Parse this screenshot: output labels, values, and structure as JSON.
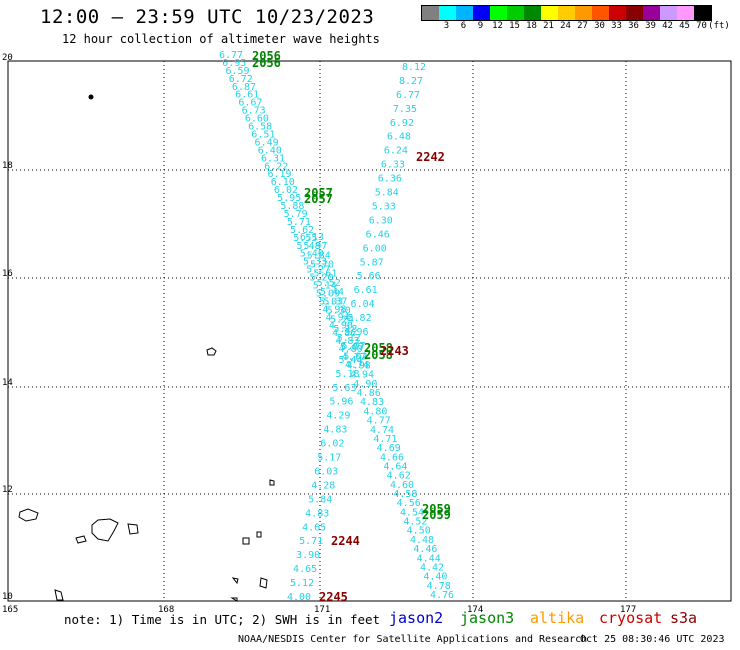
{
  "header": {
    "title": "12:00 – 23:59 UTC 10/23/2023",
    "subtitle": "12 hour collection of altimeter wave heights"
  },
  "legend": {
    "unit": "(ft)",
    "colors": [
      "#808080",
      "#00ffff",
      "#00b4ff",
      "#0000ff",
      "#00ff00",
      "#00cc00",
      "#008800",
      "#ffff00",
      "#ffcc00",
      "#ff9900",
      "#ff5500",
      "#cc0000",
      "#880000",
      "#990099",
      "#cc99ff",
      "#ff99ff",
      "#000000"
    ],
    "labels": [
      "",
      "3",
      "6",
      "9",
      "12",
      "15",
      "18",
      "21",
      "24",
      "27",
      "30",
      "33",
      "36",
      "39",
      "42",
      "45",
      "70"
    ]
  },
  "map": {
    "x_ticks": [
      "165",
      "168",
      "171",
      "174",
      "177"
    ],
    "y_ticks": [
      "20",
      "18",
      "16",
      "14",
      "12",
      "10"
    ],
    "swh_color": "#22d4e8",
    "tracks": {
      "west_top": [
        "6.77",
        "6.95",
        "6.59",
        "6.72",
        "6.87",
        "6.61",
        "6.67",
        "6.73",
        "6.60",
        "6.58",
        "6.51",
        "6.49",
        "6.40",
        "6.31",
        "6.22",
        "6.19",
        "6.10",
        "6.02",
        "5.95",
        "5.88",
        "5.79",
        "5.71",
        "5.62",
        "5.55",
        "5.48",
        "5.40",
        "5.33",
        "5.27",
        "5.20",
        "5.14",
        "5.09",
        "5.03",
        "4.98",
        "4.94",
        "4.90",
        "4.86",
        "4.83",
        "4.80",
        "4.77",
        "4.74"
      ],
      "west_bottom": [
        "6.13",
        "5.97",
        "5.84",
        "5.70",
        "5.61",
        "5.52",
        "5.44",
        "5.37",
        "5.30",
        "5.24",
        "5.18",
        "5.12",
        "5.07",
        "5.02",
        "4.98",
        "4.94",
        "4.90",
        "4.86",
        "4.83",
        "4.80",
        "4.77",
        "4.74",
        "4.71",
        "4.69",
        "4.66",
        "4.64",
        "4.62",
        "4.60",
        "4.58",
        "4.56",
        "4.54",
        "4.52",
        "4.50",
        "4.48",
        "4.46",
        "4.44",
        "4.42",
        "4.40",
        "4.78",
        "4.76"
      ],
      "east": [
        "8.12",
        "8.27",
        "6.77",
        "7.35",
        "6.92",
        "6.48",
        "6.24",
        "6.33",
        "6.36",
        "5.84",
        "5.33",
        "6.30",
        "6.46",
        "6.00",
        "5.87",
        "5.66",
        "6.61",
        "6.04",
        "5.82",
        "5.96",
        "5.07",
        "5.44",
        "5.18",
        "5.63",
        "5.96",
        "4.29",
        "4.83",
        "6.02",
        "5.17",
        "6.03",
        "4.28",
        "5.84",
        "4.83",
        "4.65",
        "5.71",
        "3.90",
        "4.65",
        "5.12",
        "4.00"
      ]
    },
    "passes": [
      {
        "label": "2056",
        "color": "#008800"
      },
      {
        "label": "2056",
        "color": "#008800"
      },
      {
        "label": "2057",
        "color": "#008800"
      },
      {
        "label": "2057",
        "color": "#008800"
      },
      {
        "label": "2242",
        "color": "#880000"
      },
      {
        "label": "2058",
        "color": "#008800"
      },
      {
        "label": "2058",
        "color": "#008800"
      },
      {
        "label": "2243",
        "color": "#880000"
      },
      {
        "label": "2059",
        "color": "#008800"
      },
      {
        "label": "2059",
        "color": "#008800"
      },
      {
        "label": "2244",
        "color": "#880000"
      },
      {
        "label": "2245",
        "color": "#880000"
      }
    ]
  },
  "footer": {
    "note": "note: 1) Time is in UTC; 2) SWH is in feet",
    "satellites": [
      {
        "name": "jason2",
        "color": "#0000cc"
      },
      {
        "name": "jason3",
        "color": "#008800"
      },
      {
        "name": "altika",
        "color": "#ff9900"
      },
      {
        "name": "cryosat",
        "color": "#cc0000"
      },
      {
        "name": "s3a",
        "color": "#880000"
      }
    ],
    "credit": "NOAA/NESDIS Center for Satellite Applications and Research",
    "timestamp": "Oct 25 08:30:46 UTC 2023"
  }
}
